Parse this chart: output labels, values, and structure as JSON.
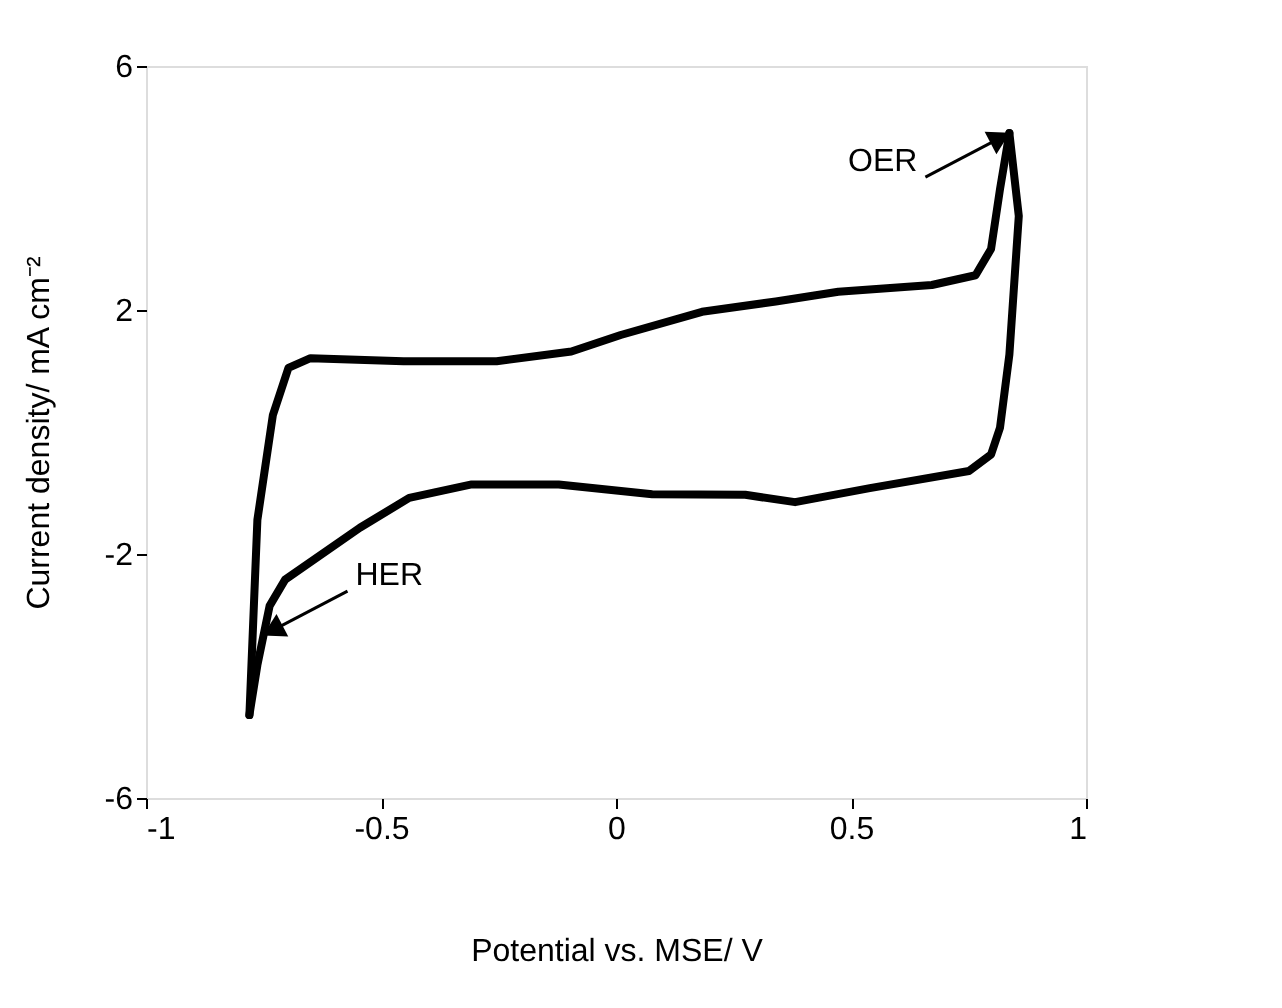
{
  "chart_data": {
    "type": "line",
    "xlabel": "Potential vs. MSE/ V",
    "ylabel": "Current  density/ mA cm⁻²",
    "series": [
      {
        "color": "#000000",
        "x": [
          -0.78,
          -0.763,
          -0.73,
          -0.697,
          -0.65,
          -0.452,
          -0.254,
          -0.095,
          0.01,
          0.183,
          0.34,
          0.473,
          0.672,
          0.765,
          0.798,
          0.817,
          0.837
        ],
        "values": [
          -4.64,
          -1.44,
          0.28,
          1.05,
          1.21,
          1.16,
          1.16,
          1.32,
          1.59,
          1.97,
          2.14,
          2.3,
          2.41,
          2.57,
          3.0,
          3.98,
          4.9
        ]
      },
      {
        "color": "#000000",
        "x": [
          0.837,
          0.857,
          0.837,
          0.817,
          0.798,
          0.751,
          0.54,
          0.381,
          0.275,
          0.077,
          -0.122,
          -0.307,
          -0.44,
          -0.545,
          -0.704,
          -0.737,
          -0.763,
          -0.78
        ],
        "values": [
          4.9,
          3.54,
          1.27,
          0.07,
          -0.37,
          -0.64,
          -0.92,
          -1.15,
          -1.03,
          -1.02,
          -0.86,
          -0.86,
          -1.08,
          -1.57,
          -2.42,
          -2.85,
          -3.82,
          -4.64
        ]
      }
    ],
    "xlim": [
      -1,
      1
    ],
    "xticks": [
      -1,
      -0.5,
      0,
      0.5,
      1
    ],
    "ylim": [
      -6,
      6
    ],
    "yticks": [
      -6,
      -2,
      2,
      6
    ],
    "annotations": [
      {
        "text": "OER",
        "x": 0.837,
        "y": 4.9
      },
      {
        "text": "HER",
        "x": -0.75,
        "y": -3.33
      }
    ],
    "line_style": "solid",
    "marker": "none",
    "grid": false,
    "legend": false
  }
}
